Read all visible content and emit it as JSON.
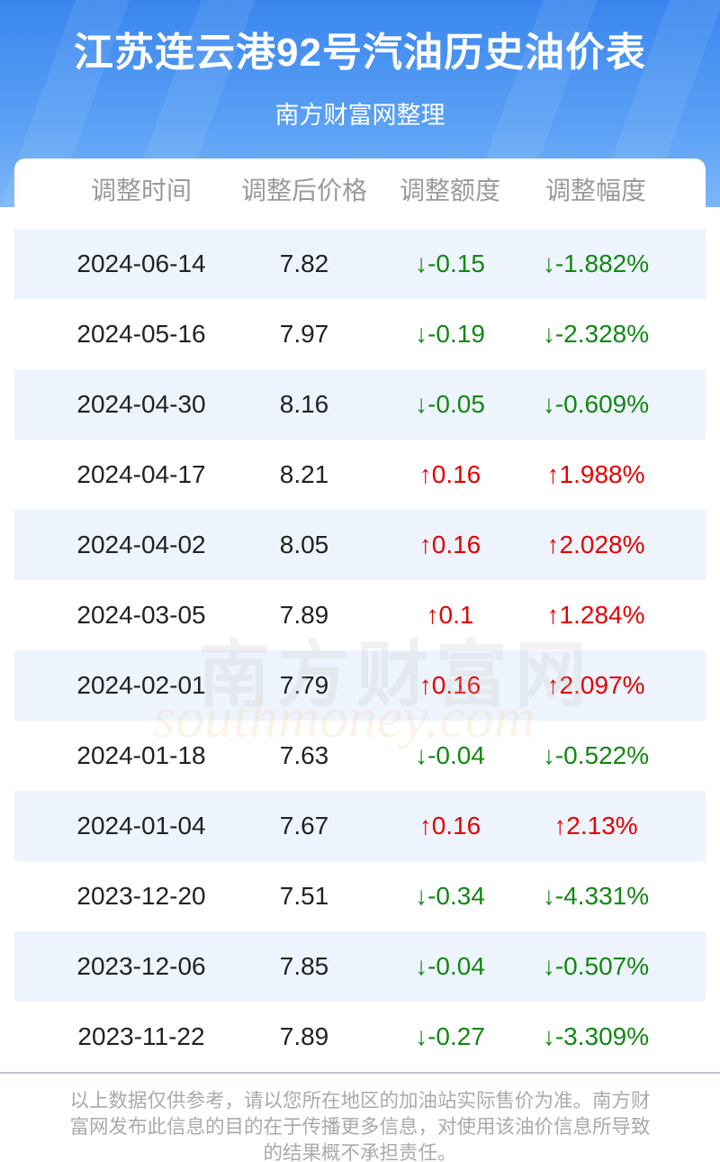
{
  "header": {
    "title": "江苏连云港92号汽油历史油价表",
    "subtitle": "南方财富网整理"
  },
  "table": {
    "header": [
      "调整时间",
      "调整后价格",
      "调整额度",
      "调整幅度"
    ],
    "rows": [
      [
        "2024-06-14",
        "7.82",
        "↓-0.15",
        "↓-1.882%"
      ],
      [
        "2024-05-16",
        "7.97",
        "↓-0.19",
        "↓-2.328%"
      ],
      [
        "2024-04-30",
        "8.16",
        "↓-0.05",
        "↓-0.609%"
      ],
      [
        "2024-04-17",
        "8.21",
        "↑0.16",
        "↑1.988%"
      ],
      [
        "2024-04-02",
        "8.05",
        "↑0.16",
        "↑2.028%"
      ],
      [
        "2024-03-05",
        "7.89",
        "↑0.1",
        "↑1.284%"
      ],
      [
        "2024-02-01",
        "7.79",
        "↑0.16",
        "↑2.097%"
      ],
      [
        "2024-01-18",
        "7.63",
        "↓-0.04",
        "↓-0.522%"
      ],
      [
        "2024-01-04",
        "7.67",
        "↑0.16",
        "↑2.13%"
      ],
      [
        "2023-12-20",
        "7.51",
        "↓-0.34",
        "↓-4.331%"
      ],
      [
        "2023-12-06",
        "7.85",
        "↓-0.04",
        "↓-0.507%"
      ],
      [
        "2023-11-22",
        "7.89",
        "↓-0.27",
        "↓-3.309%"
      ]
    ]
  },
  "watermark": {
    "name": "南方财富网",
    "domain": "southmoney.com"
  },
  "footer": {
    "note": "以上数据仅供参考，请以您所在地区的加油站实际售价为准。南方财富网发布此信息的目的在于传播更多信息，对使用该油价信息所导致的结果概不承担责任。"
  }
}
